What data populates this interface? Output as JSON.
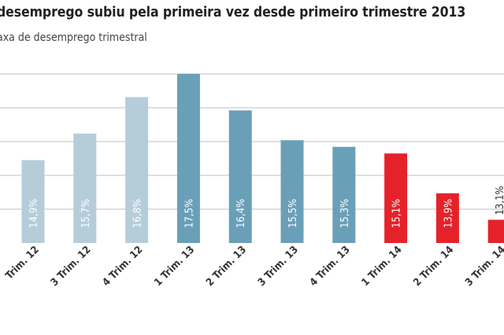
{
  "title": "desemprego subiu pela primeira vez desde primeiro trimestre 2013",
  "subtitle": "axa de desemprego trimestral",
  "colors": {
    "light_blue": "#b5cdd9",
    "mid_blue": "#6a9fb8",
    "red": "#e5222a",
    "grid": "#bfbfbf",
    "axis_text": "#333333"
  },
  "chart_data": {
    "type": "bar",
    "title": "desemprego subiu pela primeira vez desde primeiro trimestre 2013",
    "subtitle": "axa de desemprego trimestral",
    "categories": [
      "Trim. 12",
      "3 Trim. 12",
      "4 Trim. 12",
      "1 Trim. 13",
      "2 Trim. 13",
      "3 Trim. 13",
      "4 Trim. 13",
      "1 Trim. 14",
      "2 Trim. 14",
      "3 Trim. 14"
    ],
    "values": [
      14.9,
      15.7,
      16.8,
      17.5,
      16.4,
      15.5,
      15.3,
      15.1,
      13.9,
      13.1
    ],
    "labels": [
      "14,9%",
      "15,7%",
      "16,8%",
      "17,5%",
      "16,4%",
      "15,5%",
      "15,3%",
      "15,1%",
      "13,9%",
      "13,1%"
    ],
    "bar_colors": [
      "light_blue",
      "light_blue",
      "light_blue",
      "mid_blue",
      "mid_blue",
      "mid_blue",
      "mid_blue",
      "red",
      "red",
      "red"
    ],
    "ylim": [
      12.4,
      17.5
    ],
    "grid": true,
    "xlabel": "",
    "ylabel": ""
  }
}
